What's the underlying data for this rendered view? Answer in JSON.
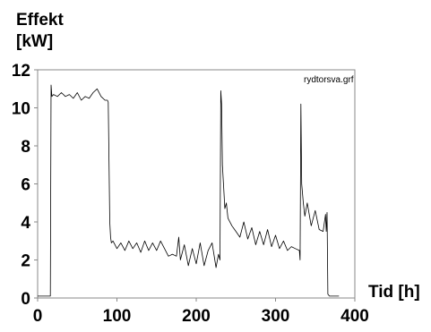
{
  "chart_data": {
    "type": "line",
    "ylabel_line1": "Effekt",
    "ylabel_line2": "[kW]",
    "xlabel": "Tid [h]",
    "annotation": "rydtorsva.grf",
    "xlim": [
      0,
      400
    ],
    "ylim": [
      0,
      12
    ],
    "xticks": [
      0,
      100,
      200,
      300,
      400
    ],
    "yticks": [
      0,
      2,
      4,
      6,
      8,
      10,
      12
    ],
    "grid": false,
    "series": [
      {
        "color": "#000000",
        "x": [
          0,
          16,
          17,
          18,
          20,
          25,
          30,
          35,
          40,
          45,
          50,
          55,
          60,
          65,
          70,
          75,
          80,
          85,
          88,
          89,
          90,
          91,
          92,
          93,
          95,
          100,
          105,
          110,
          115,
          120,
          125,
          130,
          135,
          140,
          145,
          150,
          155,
          160,
          165,
          170,
          175,
          178,
          180,
          185,
          190,
          195,
          200,
          205,
          210,
          215,
          220,
          225,
          228,
          230,
          231,
          232,
          233,
          235,
          236,
          238,
          240,
          245,
          250,
          255,
          260,
          265,
          270,
          275,
          280,
          285,
          290,
          295,
          300,
          305,
          310,
          315,
          320,
          325,
          330,
          331,
          332,
          333,
          335,
          337,
          340,
          345,
          350,
          355,
          360,
          363,
          364,
          365,
          366,
          368,
          370,
          380
        ],
        "y": [
          0.1,
          0.1,
          11.2,
          10.6,
          10.7,
          10.6,
          10.8,
          10.6,
          10.7,
          10.5,
          10.8,
          10.4,
          10.6,
          10.5,
          10.8,
          11.0,
          10.6,
          10.4,
          10.4,
          10.3,
          7.0,
          4.0,
          3.2,
          2.9,
          3.0,
          2.6,
          2.9,
          2.5,
          3.0,
          2.6,
          2.9,
          2.4,
          3.0,
          2.5,
          2.9,
          2.5,
          3.0,
          2.6,
          2.2,
          2.3,
          2.2,
          3.2,
          2.0,
          2.8,
          1.7,
          2.6,
          1.8,
          2.9,
          1.7,
          2.5,
          2.9,
          1.6,
          2.3,
          2.0,
          10.9,
          10.2,
          7.0,
          5.5,
          4.7,
          5.0,
          4.2,
          3.8,
          3.5,
          3.2,
          4.0,
          3.1,
          3.7,
          2.8,
          3.5,
          2.8,
          3.6,
          2.7,
          3.3,
          2.6,
          3.0,
          2.5,
          2.7,
          2.6,
          2.5,
          2.0,
          10.2,
          6.0,
          5.0,
          4.3,
          5.0,
          3.8,
          4.6,
          3.6,
          3.5,
          4.4,
          3.5,
          4.5,
          0.2,
          0.1,
          0.1,
          0.1
        ]
      }
    ]
  }
}
